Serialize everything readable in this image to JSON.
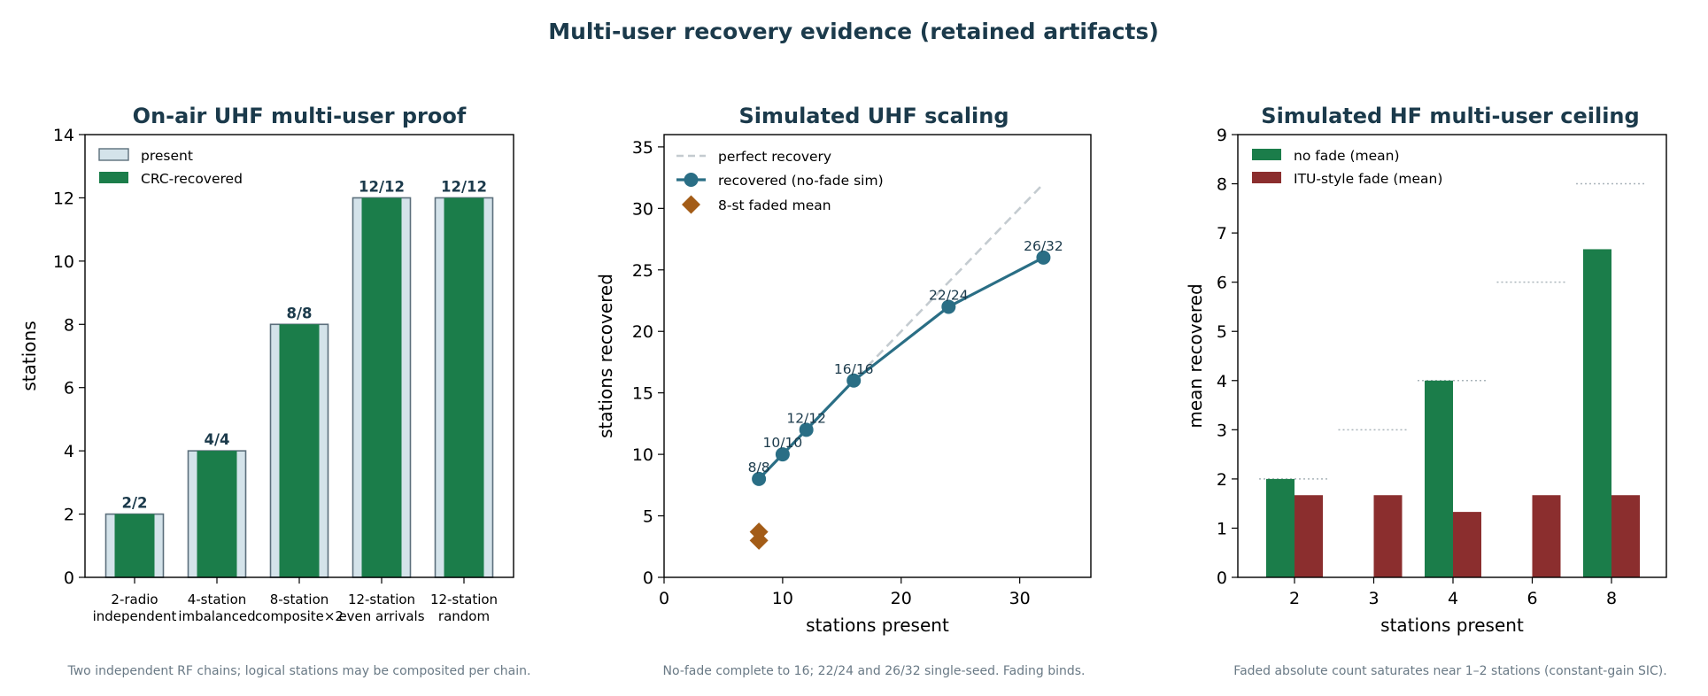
{
  "suptitle": "Multi-user recovery evidence (retained artifacts)",
  "chart_data": [
    {
      "type": "bar",
      "title": "On-air UHF multi-user proof",
      "xlabel": "",
      "ylabel": "stations",
      "ylim": [
        0,
        14
      ],
      "yticks": [
        0,
        2,
        4,
        6,
        8,
        10,
        12,
        14
      ],
      "categories": [
        "2-radio\nindependent",
        "4-station\nimbalanced",
        "8-station\ncomposite×2",
        "12-station\neven arrivals",
        "12-station\nrandom"
      ],
      "series": [
        {
          "name": "present",
          "values": [
            2,
            4,
            8,
            12,
            12
          ],
          "color": "#d4e3ea"
        },
        {
          "name": "CRC-recovered",
          "values": [
            2,
            4,
            8,
            12,
            12
          ],
          "color": "#1b7d4a"
        }
      ],
      "data_labels": [
        "2/2",
        "4/4",
        "8/8",
        "12/12",
        "12/12"
      ],
      "legend": "upper-left",
      "caption": "Two independent RF chains; logical stations may be composited per chain."
    },
    {
      "type": "line",
      "title": "Simulated UHF scaling",
      "xlabel": "stations present",
      "ylabel": "stations recovered",
      "xlim": [
        0,
        36
      ],
      "ylim": [
        0,
        36
      ],
      "xticks": [
        0,
        10,
        20,
        30
      ],
      "yticks": [
        0,
        5,
        10,
        15,
        20,
        25,
        30,
        35
      ],
      "series": [
        {
          "name": "perfect recovery",
          "x": [
            8,
            32
          ],
          "y": [
            8,
            32
          ],
          "style": "dashed",
          "color": "#c4cbd0"
        },
        {
          "name": "recovered (no-fade sim)",
          "x": [
            8,
            10,
            12,
            16,
            24,
            32
          ],
          "y": [
            8,
            10,
            12,
            16,
            22,
            26
          ],
          "color": "#2a6e85"
        },
        {
          "name": "8-st faded mean",
          "x": [
            8,
            8
          ],
          "y": [
            3,
            3.7
          ],
          "marker": "diamond",
          "color": "#a35c17"
        }
      ],
      "point_labels": [
        "8/8",
        "10/10",
        "12/12",
        "16/16",
        "22/24",
        "26/32"
      ],
      "legend": "upper-left",
      "caption": "No-fade complete to 16; 22/24 and 26/32 single-seed. Fading binds."
    },
    {
      "type": "bar",
      "title": "Simulated HF multi-user ceiling",
      "xlabel": "stations present",
      "ylabel": "mean recovered",
      "ylim": [
        0,
        9
      ],
      "yticks": [
        0,
        1,
        2,
        3,
        4,
        5,
        6,
        7,
        8,
        9
      ],
      "categories": [
        "2",
        "3",
        "4",
        "6",
        "8"
      ],
      "series": [
        {
          "name": "no fade (mean)",
          "values": [
            2,
            0,
            4,
            0,
            6.67
          ],
          "color": "#1b7d4a"
        },
        {
          "name": "ITU-style fade (mean)",
          "values": [
            1.67,
            1.67,
            1.33,
            1.67,
            1.67
          ],
          "color": "#8b2e2e"
        }
      ],
      "reference_levels": [
        2,
        3,
        4,
        6,
        8
      ],
      "legend": "upper-left",
      "caption": "Faded absolute count saturates near 1–2 stations (constant-gain SIC)."
    }
  ]
}
